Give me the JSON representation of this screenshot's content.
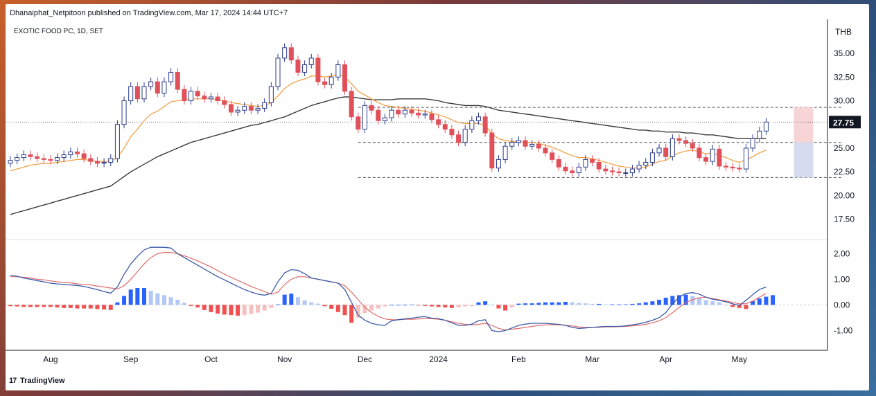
{
  "header": {
    "publish_info": "Dhanaiphat_Netpitoon published on TradingView.com, Mar 17, 2024 14:44 UTC+7"
  },
  "footer": {
    "brand": "TradingView"
  },
  "colors": {
    "up": "#2a3a8c",
    "down": "#e0505a",
    "ema_fast": "#f29a3c",
    "sma_slow": "#3a3a3a",
    "macd": "#3a5aa8",
    "signal": "#e06a6a",
    "hist_pos_strong": "#2962ff",
    "hist_pos_weak": "#b2c8f5",
    "hist_neg_strong": "#f05050",
    "hist_neg_weak": "#f7c0c0",
    "box_upper": "#f7d4d6",
    "box_lower": "#d6dcef"
  },
  "chart_data": {
    "type": "candlestick",
    "symbol_label": "EXOTIC FOOD PC, 1D, SET",
    "currency": "THB",
    "last_price": "27.75",
    "price_axis": {
      "ylim": [
        15.5,
        38.0
      ],
      "ticks": [
        "35.00",
        "32.50",
        "30.00",
        "27.50",
        "25.00",
        "22.50",
        "20.00",
        "17.50"
      ]
    },
    "macd_axis": {
      "ylim": [
        -1.45,
        2.5
      ],
      "ticks": [
        "2.00",
        "1.00",
        "0.00",
        "-1.00"
      ]
    },
    "time_axis": {
      "labels": [
        "Aug",
        "Sep",
        "Oct",
        "Nov",
        "Dec",
        "2024",
        "Feb",
        "Mar",
        "Apr",
        "May"
      ],
      "label_index": [
        6,
        18,
        30,
        41,
        53,
        64,
        76,
        87,
        98,
        109
      ]
    },
    "levels": [
      29.3,
      25.6,
      21.9
    ],
    "closes": [
      23.7,
      24.0,
      24.3,
      24.1,
      23.9,
      23.8,
      23.7,
      24.0,
      24.3,
      24.6,
      24.4,
      23.9,
      23.6,
      23.4,
      23.5,
      23.9,
      27.5,
      30.0,
      31.5,
      30.2,
      31.5,
      32.0,
      30.8,
      32.0,
      33.0,
      31.2,
      30.0,
      31.0,
      30.5,
      30.2,
      30.4,
      30.0,
      29.6,
      28.8,
      29.0,
      29.4,
      29.0,
      29.2,
      29.8,
      31.5,
      34.5,
      35.6,
      34.3,
      33.0,
      33.8,
      34.5,
      32.0,
      31.7,
      32.5,
      33.8,
      31.0,
      28.3,
      27.0,
      29.5,
      29.0,
      27.9,
      28.2,
      29.0,
      28.6,
      29.0,
      28.7,
      28.5,
      28.6,
      28.0,
      27.5,
      27.0,
      26.4,
      25.6,
      27.0,
      27.9,
      28.3,
      26.6,
      22.9,
      23.8,
      25.2,
      25.6,
      25.8,
      25.2,
      25.4,
      25.0,
      24.5,
      23.8,
      23.0,
      22.6,
      22.4,
      23.0,
      23.8,
      23.5,
      22.8,
      22.6,
      22.5,
      22.4,
      22.4,
      22.8,
      23.2,
      23.5,
      24.5,
      25.0,
      24.1,
      26.0,
      25.8,
      25.5,
      25.0,
      24.0,
      23.6,
      24.9,
      23.1,
      23.0,
      22.9,
      22.8,
      25.0,
      26.0,
      26.8,
      27.75
    ],
    "ema_fast": [
      22.6,
      22.8,
      23.0,
      23.2,
      23.3,
      23.4,
      23.4,
      23.5,
      23.6,
      23.7,
      23.8,
      23.8,
      23.7,
      23.6,
      23.6,
      23.6,
      24.0,
      25.0,
      26.2,
      27.0,
      27.9,
      28.6,
      28.9,
      29.4,
      29.9,
      30.0,
      30.1,
      30.2,
      30.2,
      30.2,
      30.2,
      30.1,
      30.0,
      29.8,
      29.7,
      29.6,
      29.5,
      29.4,
      29.5,
      29.8,
      30.5,
      31.3,
      31.8,
      32.1,
      32.3,
      32.6,
      32.6,
      32.5,
      32.6,
      32.8,
      32.5,
      31.8,
      31.0,
      30.6,
      30.2,
      29.8,
      29.5,
      29.4,
      29.3,
      29.2,
      29.1,
      29.0,
      28.9,
      28.7,
      28.5,
      28.3,
      28.0,
      27.7,
      27.6,
      27.6,
      27.6,
      27.4,
      26.5,
      26.0,
      25.8,
      25.7,
      25.7,
      25.6,
      25.6,
      25.5,
      25.3,
      25.1,
      24.8,
      24.5,
      24.2,
      24.0,
      24.0,
      23.9,
      23.7,
      23.5,
      23.3,
      23.1,
      23.0,
      22.9,
      22.9,
      23.0,
      23.3,
      23.6,
      23.7,
      24.2,
      24.5,
      24.7,
      24.8,
      24.6,
      24.4,
      24.5,
      24.2,
      24.0,
      23.7,
      23.5,
      23.8,
      24.1,
      24.5,
      24.8
    ],
    "sma_slow": [
      18.0,
      18.2,
      18.4,
      18.6,
      18.8,
      19.0,
      19.2,
      19.4,
      19.6,
      19.8,
      20.0,
      20.2,
      20.4,
      20.6,
      20.8,
      21.0,
      21.5,
      22.0,
      22.5,
      22.9,
      23.3,
      23.7,
      24.1,
      24.4,
      24.7,
      25.0,
      25.3,
      25.6,
      25.8,
      26.0,
      26.2,
      26.4,
      26.6,
      26.8,
      27.0,
      27.2,
      27.4,
      27.5,
      27.7,
      27.9,
      28.1,
      28.3,
      28.6,
      28.9,
      29.2,
      29.5,
      29.7,
      29.9,
      30.1,
      30.3,
      30.4,
      30.4,
      30.3,
      30.2,
      30.1,
      30.1,
      30.1,
      30.1,
      30.2,
      30.2,
      30.2,
      30.2,
      30.2,
      30.1,
      30.0,
      29.8,
      29.7,
      29.6,
      29.5,
      29.5,
      29.5,
      29.4,
      29.2,
      29.0,
      28.9,
      28.8,
      28.7,
      28.6,
      28.5,
      28.4,
      28.3,
      28.2,
      28.1,
      28.0,
      27.9,
      27.8,
      27.7,
      27.6,
      27.5,
      27.4,
      27.3,
      27.2,
      27.1,
      27.0,
      26.9,
      26.9,
      26.8,
      26.8,
      26.7,
      26.7,
      26.7,
      26.6,
      26.6,
      26.5,
      26.4,
      26.4,
      26.3,
      26.2,
      26.1,
      26.0,
      26.0,
      26.0,
      26.0,
      26.0
    ],
    "macd": [
      1.15,
      1.12,
      1.05,
      1.0,
      0.95,
      0.9,
      0.85,
      0.82,
      0.8,
      0.78,
      0.76,
      0.72,
      0.66,
      0.6,
      0.52,
      0.46,
      0.7,
      1.2,
      1.6,
      1.9,
      2.15,
      2.25,
      2.25,
      2.25,
      2.22,
      2.0,
      1.85,
      1.7,
      1.55,
      1.4,
      1.25,
      1.1,
      0.98,
      0.85,
      0.72,
      0.6,
      0.5,
      0.42,
      0.38,
      0.45,
      0.9,
      1.25,
      1.38,
      1.35,
      1.22,
      1.05,
      1.0,
      0.95,
      0.9,
      0.85,
      0.6,
      0.1,
      -0.4,
      -0.6,
      -0.72,
      -0.78,
      -0.8,
      -0.62,
      -0.58,
      -0.55,
      -0.52,
      -0.48,
      -0.46,
      -0.52,
      -0.54,
      -0.6,
      -0.7,
      -0.8,
      -0.8,
      -0.75,
      -0.62,
      -0.58,
      -1.0,
      -1.05,
      -1.0,
      -0.9,
      -0.8,
      -0.75,
      -0.72,
      -0.72,
      -0.72,
      -0.74,
      -0.76,
      -0.8,
      -0.88,
      -0.92,
      -0.9,
      -0.88,
      -0.86,
      -0.84,
      -0.84,
      -0.84,
      -0.82,
      -0.78,
      -0.74,
      -0.68,
      -0.6,
      -0.5,
      -0.3,
      0.05,
      0.3,
      0.45,
      0.48,
      0.42,
      0.3,
      0.22,
      0.18,
      0.12,
      0.04,
      -0.02,
      0.18,
      0.4,
      0.6,
      0.7
    ],
    "signal": [
      1.1,
      1.1,
      1.08,
      1.05,
      1.0,
      0.98,
      0.94,
      0.9,
      0.88,
      0.86,
      0.82,
      0.8,
      0.78,
      0.74,
      0.7,
      0.66,
      0.62,
      0.75,
      1.0,
      1.3,
      1.6,
      1.85,
      2.0,
      2.05,
      2.05,
      2.0,
      1.92,
      1.82,
      1.72,
      1.6,
      1.48,
      1.34,
      1.2,
      1.08,
      0.96,
      0.84,
      0.72,
      0.62,
      0.52,
      0.42,
      0.5,
      0.8,
      1.0,
      1.1,
      1.1,
      1.05,
      1.0,
      0.95,
      0.9,
      0.85,
      0.75,
      0.5,
      0.2,
      -0.1,
      -0.3,
      -0.45,
      -0.55,
      -0.58,
      -0.58,
      -0.56,
      -0.56,
      -0.55,
      -0.54,
      -0.54,
      -0.56,
      -0.6,
      -0.66,
      -0.72,
      -0.76,
      -0.78,
      -0.76,
      -0.72,
      -0.8,
      -0.92,
      -0.98,
      -0.95,
      -0.92,
      -0.88,
      -0.84,
      -0.8,
      -0.78,
      -0.78,
      -0.78,
      -0.8,
      -0.82,
      -0.86,
      -0.88,
      -0.88,
      -0.88,
      -0.86,
      -0.86,
      -0.85,
      -0.84,
      -0.82,
      -0.8,
      -0.76,
      -0.7,
      -0.62,
      -0.5,
      -0.3,
      -0.1,
      0.1,
      0.2,
      0.28,
      0.3,
      0.25,
      0.2,
      0.15,
      0.1,
      0.04,
      0.05,
      0.15,
      0.3,
      0.45
    ],
    "histogram": [
      -0.05,
      -0.06,
      -0.08,
      -0.08,
      -0.08,
      -0.08,
      -0.08,
      -0.1,
      -0.12,
      -0.12,
      -0.14,
      -0.14,
      -0.14,
      -0.16,
      -0.18,
      -0.2,
      0.1,
      0.35,
      0.6,
      0.66,
      0.66,
      0.55,
      0.45,
      0.38,
      0.3,
      0.2,
      0.08,
      -0.04,
      -0.1,
      -0.2,
      -0.28,
      -0.34,
      -0.38,
      -0.4,
      -0.42,
      -0.4,
      -0.36,
      -0.3,
      -0.22,
      -0.12,
      0.02,
      0.4,
      0.44,
      0.3,
      0.18,
      0.1,
      0.05,
      -0.05,
      -0.15,
      -0.28,
      -0.4,
      -0.7,
      -0.5,
      -0.32,
      -0.22,
      -0.14,
      -0.06,
      0.0,
      0.0,
      0.0,
      0.01,
      -0.02,
      -0.04,
      -0.06,
      -0.08,
      -0.1,
      -0.12,
      -0.1,
      -0.06,
      -0.05,
      0.1,
      0.14,
      0.0,
      -0.14,
      -0.22,
      -0.1,
      0.05,
      0.06,
      0.06,
      0.08,
      0.1,
      0.1,
      0.1,
      0.12,
      0.1,
      0.08,
      0.06,
      0.04,
      0.04,
      0.02,
      0.02,
      0.02,
      0.02,
      0.04,
      0.06,
      0.1,
      0.14,
      0.2,
      0.28,
      0.35,
      0.38,
      0.4,
      0.35,
      0.28,
      0.18,
      0.14,
      0.1,
      0.0,
      -0.08,
      -0.12,
      -0.16,
      0.15,
      0.25,
      0.32,
      0.38
    ]
  }
}
